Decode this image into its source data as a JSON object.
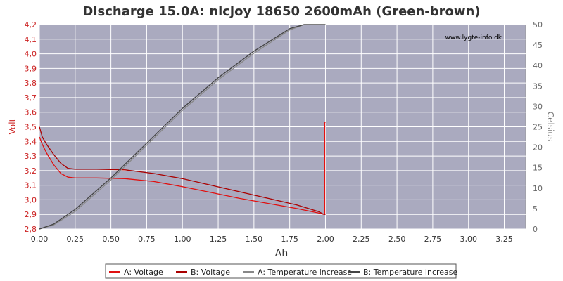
{
  "chart_data": {
    "type": "line",
    "title": "Discharge 15.0A: nicjoy 18650 2600mAh (Green-brown)",
    "watermark": "www.lygte-info.dk",
    "xlabel": "Ah",
    "ylabel_left": "Volt",
    "ylabel_right": "Celsius",
    "xlim": [
      0,
      3.4
    ],
    "ylim_left": [
      2.8,
      4.2
    ],
    "ylim_right": [
      0,
      50
    ],
    "x_ticks": [
      "0,00",
      "0,25",
      "0,50",
      "0,75",
      "1,00",
      "1,25",
      "1,50",
      "1,75",
      "2,00",
      "2,25",
      "2,50",
      "2,75",
      "3,00",
      "3,25"
    ],
    "y_left_ticks": [
      "2,8",
      "2,9",
      "3,0",
      "3,1",
      "3,2",
      "3,3",
      "3,4",
      "3,5",
      "3,6",
      "3,7",
      "3,8",
      "3,9",
      "4,0",
      "4,1",
      "4,2"
    ],
    "y_right_ticks": [
      "0",
      "5",
      "10",
      "15",
      "20",
      "25",
      "30",
      "35",
      "40",
      "45",
      "50"
    ],
    "grid": true,
    "legend_placement": "bottom",
    "series": [
      {
        "name": "A: Voltage",
        "axis": "left",
        "color": "#e01010",
        "x": [
          0.0,
          0.02,
          0.05,
          0.1,
          0.15,
          0.2,
          0.25,
          0.4,
          0.6,
          0.8,
          1.0,
          1.2,
          1.4,
          1.6,
          1.8,
          1.95,
          1.99,
          1.995,
          1.995,
          2.0
        ],
        "y": [
          3.43,
          3.38,
          3.32,
          3.24,
          3.18,
          3.155,
          3.15,
          3.15,
          3.145,
          3.125,
          3.09,
          3.05,
          3.01,
          2.975,
          2.94,
          2.91,
          2.9,
          2.9,
          3.53,
          3.53
        ]
      },
      {
        "name": "B: Voltage",
        "axis": "left",
        "color": "#aa0000",
        "x": [
          0.0,
          0.02,
          0.05,
          0.1,
          0.15,
          0.2,
          0.25,
          0.4,
          0.6,
          0.8,
          1.0,
          1.2,
          1.4,
          1.6,
          1.8,
          1.95,
          1.99,
          2.0,
          2.0
        ],
        "y": [
          3.5,
          3.43,
          3.38,
          3.31,
          3.25,
          3.215,
          3.21,
          3.21,
          3.205,
          3.18,
          3.145,
          3.1,
          3.055,
          3.01,
          2.965,
          2.92,
          2.9,
          2.9,
          2.9
        ]
      },
      {
        "name": "A: Temperature increase",
        "axis": "right",
        "color": "#888888",
        "x": [
          0.0,
          0.1,
          0.25,
          0.5,
          0.75,
          1.0,
          1.25,
          1.5,
          1.75,
          1.85,
          1.9,
          1.98,
          1.98,
          2.0
        ],
        "y": [
          0,
          1,
          4.3,
          12,
          20.5,
          29,
          36.5,
          43,
          48.7,
          50,
          50,
          50,
          50,
          50
        ]
      },
      {
        "name": "B: Temperature increase",
        "axis": "right",
        "color": "#444444",
        "x": [
          0.0,
          0.1,
          0.25,
          0.5,
          0.75,
          1.0,
          1.25,
          1.5,
          1.75,
          1.85,
          1.9,
          2.0,
          2.0
        ],
        "y": [
          0,
          1.2,
          4.8,
          12.5,
          21,
          29.5,
          37,
          43.5,
          49,
          50,
          50,
          50,
          50
        ]
      }
    ]
  }
}
